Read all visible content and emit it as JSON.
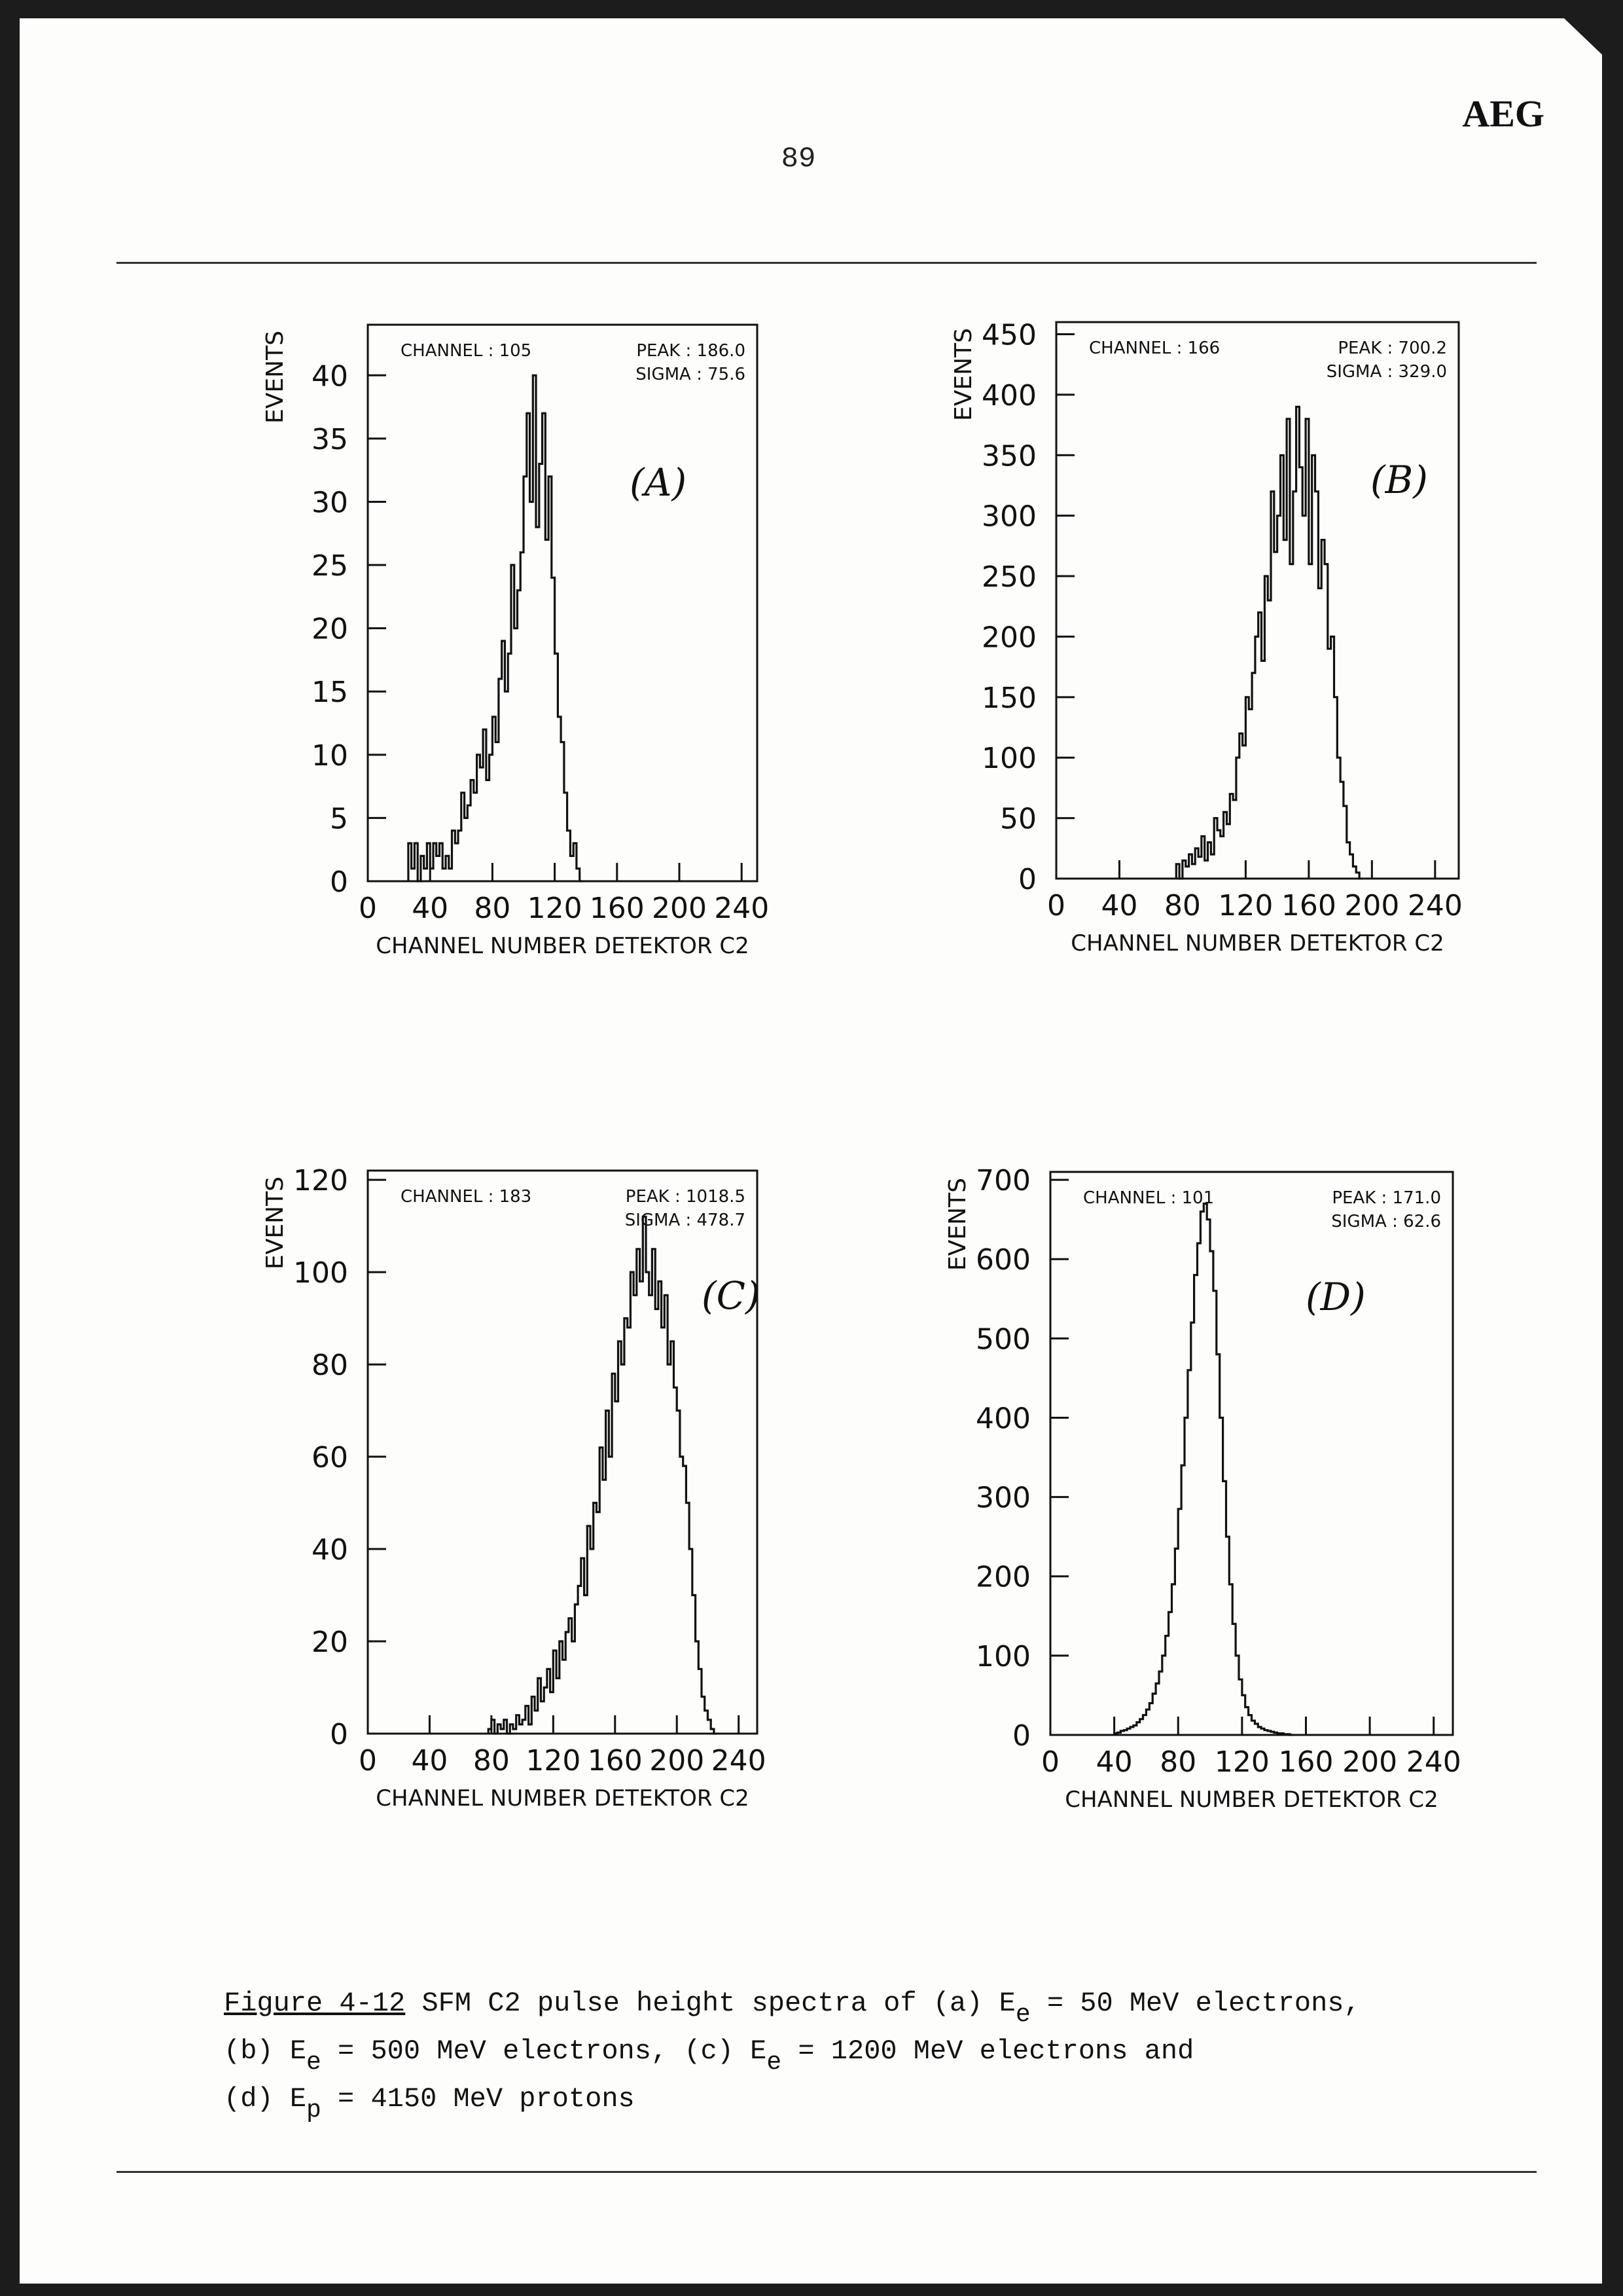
{
  "header": {
    "logo": "AEG",
    "page_number": "89"
  },
  "caption": {
    "figure_label": "Figure 4-12",
    "line1_text": " SFM C2 pulse height spectra of (a) E",
    "line1_sub": "e",
    "line1_tail": " = 50 MeV electrons,",
    "line2_a": "(b) E",
    "line2_sub1": "e",
    "line2_b": " = 500 MeV electrons, (c) E",
    "line2_sub2": "e",
    "line2_c": " = 1200 MeV electrons and",
    "line3_a": "(d) E",
    "line3_sub": "p",
    "line3_b": " = 4150 MeV protons"
  },
  "chart_data": [
    {
      "type": "histogram",
      "panel_label": "(A)",
      "xlabel": "CHANNEL NUMBER DETEKTOR C2",
      "ylabel": "EVENTS",
      "xlim": [
        0,
        250
      ],
      "ylim": [
        0,
        44
      ],
      "xticks": [
        0,
        40,
        80,
        120,
        160,
        200,
        240
      ],
      "yticks": [
        0,
        5,
        10,
        15,
        20,
        25,
        30,
        35,
        40
      ],
      "info": {
        "channel_label": "CHANNEL : 105",
        "peak_label": "PEAK  :  186.0",
        "sigma_label": "SIGMA  :   75.6"
      },
      "bin_start": 26,
      "bin_width": 2,
      "counts": [
        3,
        1,
        3,
        0,
        2,
        1,
        3,
        1,
        3,
        2,
        3,
        1,
        2,
        1,
        4,
        3,
        4,
        7,
        5,
        6,
        8,
        7,
        10,
        9,
        12,
        8,
        10,
        13,
        11,
        16,
        19,
        15,
        18,
        25,
        20,
        23,
        26,
        32,
        37,
        30,
        40,
        28,
        33,
        37,
        27,
        32,
        24,
        18,
        13,
        11,
        7,
        4,
        2,
        3,
        1,
        0
      ]
    },
    {
      "type": "histogram",
      "panel_label": "(B)",
      "xlabel": "CHANNEL NUMBER DETEKTOR C2",
      "ylabel": "EVENTS",
      "xlim": [
        0,
        255
      ],
      "ylim": [
        0,
        460
      ],
      "xticks": [
        0,
        40,
        80,
        120,
        160,
        200,
        240
      ],
      "yticks": [
        0,
        50,
        100,
        150,
        200,
        250,
        300,
        350,
        400,
        450
      ],
      "info": {
        "channel_label": "CHANNEL : 166",
        "peak_label": "PEAK  :  700.2",
        "sigma_label": "SIGMA  :  329.0"
      },
      "bin_start": 76,
      "bin_width": 2,
      "counts": [
        12,
        0,
        15,
        10,
        20,
        12,
        25,
        18,
        35,
        15,
        30,
        20,
        50,
        40,
        35,
        55,
        45,
        70,
        65,
        100,
        120,
        110,
        150,
        140,
        170,
        200,
        220,
        180,
        250,
        230,
        320,
        270,
        300,
        350,
        280,
        380,
        260,
        320,
        390,
        340,
        300,
        380,
        260,
        350,
        320,
        240,
        280,
        260,
        190,
        200,
        150,
        100,
        80,
        60,
        30,
        20,
        10,
        5,
        0
      ]
    },
    {
      "type": "histogram",
      "panel_label": "(C)",
      "xlabel": "CHANNEL NUMBER DETEKTOR C2",
      "ylabel": "EVENTS",
      "xlim": [
        0,
        252
      ],
      "ylim": [
        0,
        122
      ],
      "xticks": [
        0,
        40,
        80,
        120,
        160,
        200,
        240
      ],
      "yticks": [
        0,
        20,
        40,
        60,
        80,
        100,
        120
      ],
      "info": {
        "channel_label": "CHANNEL : 183",
        "peak_label": "PEAK  : 1018.5",
        "sigma_label": "SIGMA  :  478.7"
      },
      "bin_start": 78,
      "bin_width": 2,
      "counts": [
        1,
        3,
        0,
        2,
        1,
        3,
        0,
        2,
        1,
        4,
        2,
        3,
        6,
        2,
        8,
        5,
        12,
        7,
        10,
        14,
        9,
        18,
        12,
        20,
        16,
        22,
        25,
        20,
        28,
        32,
        38,
        30,
        45,
        40,
        50,
        48,
        62,
        55,
        70,
        60,
        78,
        72,
        85,
        80,
        90,
        88,
        100,
        95,
        105,
        98,
        112,
        100,
        95,
        105,
        92,
        98,
        88,
        95,
        80,
        85,
        75,
        70,
        60,
        58,
        50,
        40,
        30,
        20,
        14,
        8,
        5,
        3,
        1,
        0
      ]
    },
    {
      "type": "histogram",
      "panel_label": "(D)",
      "xlabel": "CHANNEL NUMBER DETEKTOR C2",
      "ylabel": "EVENTS",
      "xlim": [
        0,
        252
      ],
      "ylim": [
        0,
        710
      ],
      "xticks": [
        0,
        40,
        80,
        120,
        160,
        200,
        240
      ],
      "yticks": [
        0,
        100,
        200,
        300,
        400,
        500,
        600,
        700
      ],
      "info": {
        "channel_label": "CHANNEL : 101",
        "peak_label": "PEAK  :  171.0",
        "sigma_label": "SIGMA  :   62.6"
      },
      "bin_start": 40,
      "bin_width": 2,
      "counts": [
        2,
        3,
        5,
        6,
        8,
        10,
        12,
        16,
        20,
        25,
        32,
        40,
        52,
        65,
        80,
        100,
        125,
        155,
        190,
        235,
        285,
        340,
        400,
        460,
        520,
        580,
        620,
        660,
        670,
        650,
        610,
        560,
        480,
        400,
        320,
        250,
        190,
        140,
        100,
        70,
        50,
        35,
        25,
        18,
        14,
        10,
        8,
        6,
        5,
        4,
        3,
        2,
        2,
        1,
        1,
        0
      ]
    }
  ]
}
